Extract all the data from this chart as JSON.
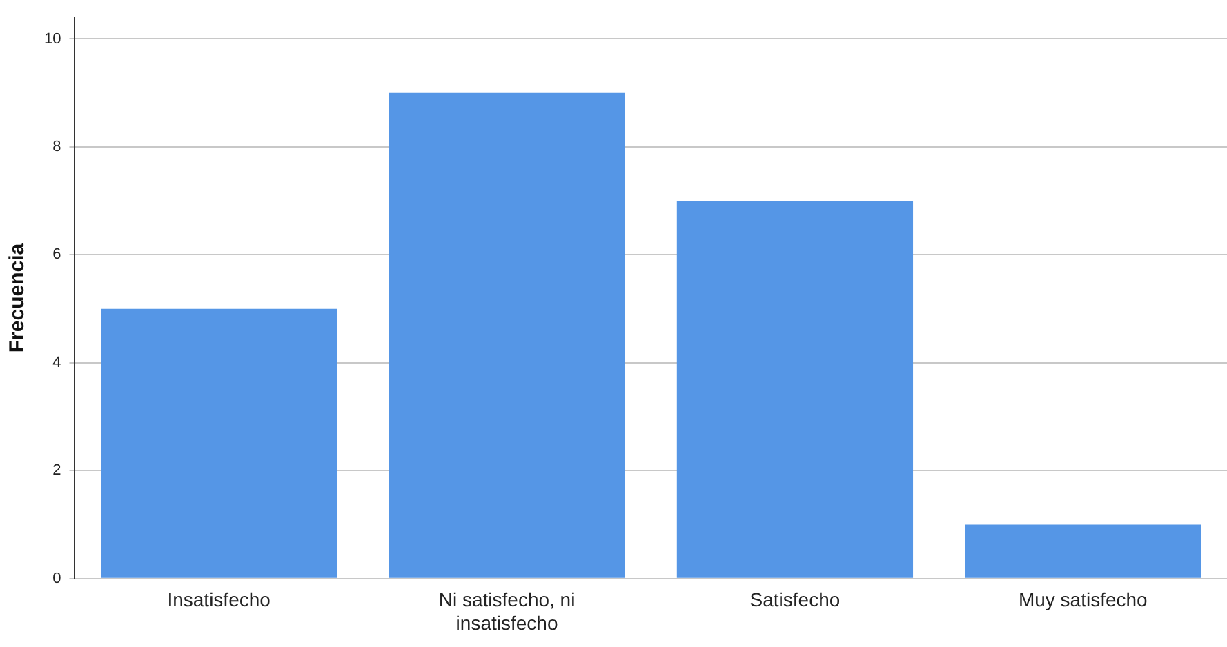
{
  "chart_data": {
    "type": "bar",
    "ylabel": "Frecuencia",
    "categories": [
      "Insatisfecho",
      "Ni satisfecho, ni insatisfecho",
      "Satisfecho",
      "Muy satisfecho"
    ],
    "values": [
      5,
      9,
      7,
      1
    ],
    "color": "#5596e6",
    "ylim": [
      0,
      10.4
    ],
    "yticks": [
      0,
      2,
      4,
      6,
      8,
      10
    ],
    "grid": "y",
    "legend": false
  }
}
